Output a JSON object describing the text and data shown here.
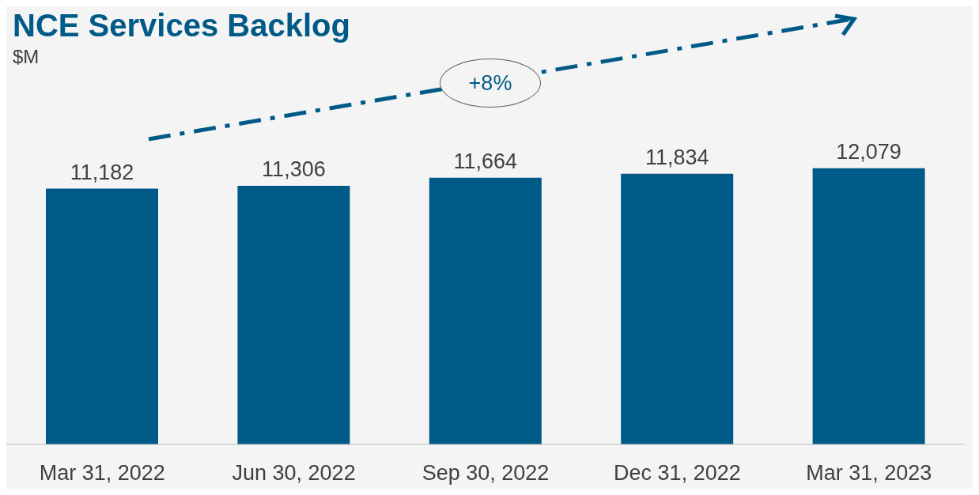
{
  "chart_data": {
    "type": "bar",
    "title": "NCE Services Backlog",
    "subtitle": "$M",
    "categories": [
      "Mar 31, 2022",
      "Jun 30, 2022",
      "Sep 30, 2022",
      "Dec 31, 2022",
      "Mar 31, 2023"
    ],
    "values": [
      11182,
      11306,
      11664,
      11834,
      12079
    ],
    "color": "#005a87",
    "tick_labels": "x",
    "value_labels": [
      "11,182",
      "11,306",
      "11,664",
      "11,834",
      "12,079"
    ],
    "annotations": [
      "+8%"
    ]
  }
}
